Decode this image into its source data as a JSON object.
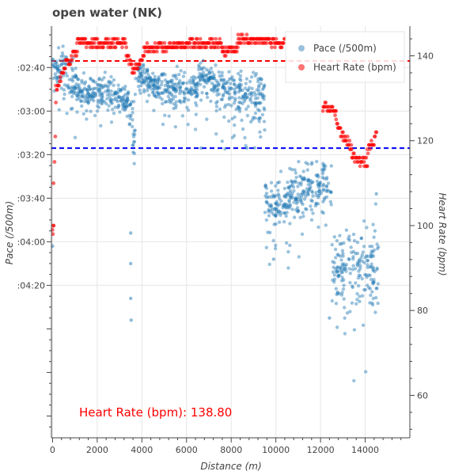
{
  "chart_data": {
    "type": "scatter",
    "title": "open water (NK)",
    "xlabel": "Distance (m)",
    "ylabel_left": "Pace (/500m)",
    "ylabel_right": "Heart Rate (bpm)",
    "x_ticks": [
      0,
      2000,
      4000,
      6000,
      8000,
      10000,
      12000,
      14000
    ],
    "xlim": [
      -50,
      16000
    ],
    "left_axis": {
      "inverted": true,
      "range_seconds": [
        141,
        330
      ],
      "ticks": [
        {
          "value": 160,
          "label": ":02:40"
        },
        {
          "value": 180,
          "label": ":03:00"
        },
        {
          "value": 200,
          "label": ":03:20"
        },
        {
          "value": 220,
          "label": ":03:40"
        },
        {
          "value": 240,
          "label": ":04:00"
        },
        {
          "value": 260,
          "label": ":04:20"
        }
      ]
    },
    "right_axis": {
      "range": [
        50,
        147
      ],
      "ticks": [
        60,
        80,
        100,
        120,
        140
      ]
    },
    "grid": true,
    "legend_position": "top-right",
    "series": [
      {
        "name": "Pace (/500m)",
        "axis": "left",
        "color": "#1f77b4",
        "segments": [
          {
            "x": [
              0,
              400
            ],
            "y": [
              158,
              164
            ],
            "spread": 8
          },
          {
            "x": [
              400,
              1100
            ],
            "y": [
              159,
              168
            ],
            "spread": 10
          },
          {
            "x": [
              1100,
              2500
            ],
            "y": [
              171,
              171
            ],
            "spread": 9
          },
          {
            "x": [
              2500,
              3400
            ],
            "y": [
              172,
              176
            ],
            "spread": 8
          },
          {
            "x": [
              3400,
              3700
            ],
            "y": [
              178,
              196
            ],
            "spread": 16
          },
          {
            "x": [
              3700,
              4300
            ],
            "y": [
              162,
              166
            ],
            "spread": 7
          },
          {
            "x": [
              4300,
              5400
            ],
            "y": [
              168,
              170
            ],
            "spread": 8
          },
          {
            "x": [
              5400,
              6500
            ],
            "y": [
              169,
              172
            ],
            "spread": 9
          },
          {
            "x": [
              6500,
              7300
            ],
            "y": [
              164,
              166
            ],
            "spread": 7
          },
          {
            "x": [
              7300,
              9500
            ],
            "y": [
              170,
              174
            ],
            "spread": 12
          },
          {
            "x": [
              9500,
              10600
            ],
            "y": [
              224,
              222
            ],
            "spread": 12
          },
          {
            "x": [
              10600,
              12500
            ],
            "y": [
              218,
              213
            ],
            "spread": 12
          },
          {
            "x": [
              12500,
              13500
            ],
            "y": [
              252,
              255
            ],
            "spread": 22
          },
          {
            "x": [
              13500,
              14600
            ],
            "y": [
              258,
              248
            ],
            "spread": 24
          }
        ],
        "points": [
          {
            "x": 0,
            "y": 242
          },
          {
            "x": 3500,
            "y": 236
          },
          {
            "x": 3500,
            "y": 250
          },
          {
            "x": 3500,
            "y": 266
          },
          {
            "x": 3520,
            "y": 276
          },
          {
            "x": 6650,
            "y": 197
          },
          {
            "x": 8700,
            "y": 197
          },
          {
            "x": 9900,
            "y": 248
          },
          {
            "x": 12400,
            "y": 275
          },
          {
            "x": 14500,
            "y": 218
          }
        ]
      },
      {
        "name": "Heart Rate (bpm)",
        "axis": "right",
        "color": "#ff0000",
        "segments": [
          {
            "x": [
              0,
              50
            ],
            "y": [
              98,
              100
            ]
          },
          {
            "x": [
              50,
              150
            ],
            "y": [
              110,
              128
            ]
          },
          {
            "x": [
              150,
              600
            ],
            "y": [
              132,
              138
            ]
          },
          {
            "x": [
              600,
              1100
            ],
            "y": [
              138,
              141
            ]
          },
          {
            "x": [
              1100,
              3300
            ],
            "y": [
              143,
              143
            ]
          },
          {
            "x": [
              3300,
              3600
            ],
            "y": [
              140,
              137
            ]
          },
          {
            "x": [
              3600,
              4100
            ],
            "y": [
              136,
              140
            ]
          },
          {
            "x": [
              4100,
              7600
            ],
            "y": [
              142,
              143
            ]
          },
          {
            "x": [
              7600,
              8300
            ],
            "y": [
              141,
              142
            ]
          },
          {
            "x": [
              8300,
              10400
            ],
            "y": [
              144,
              143
            ]
          },
          {
            "x": [
              12100,
              12700
            ],
            "y": [
              128,
              127
            ]
          },
          {
            "x": [
              12700,
              13400
            ],
            "y": [
              124,
              118
            ]
          },
          {
            "x": [
              13400,
              14100
            ],
            "y": [
              116,
              115
            ]
          },
          {
            "x": [
              14100,
              14500
            ],
            "y": [
              118,
              121
            ]
          }
        ]
      }
    ],
    "reference_lines": [
      {
        "axis": "right",
        "value": 138.8,
        "color": "#ff0000",
        "style": "dashed"
      },
      {
        "axis": "left",
        "value": 197,
        "color": "#0000ff",
        "style": "dashed"
      }
    ],
    "legend": [
      {
        "label": "Pace (/500m)",
        "color": "#1f77b4"
      },
      {
        "label": "Heart Rate (bpm)",
        "color": "#ff0000"
      }
    ],
    "annotation": {
      "text": "Heart Rate (bpm): 138.80",
      "color": "#ff0000"
    }
  }
}
